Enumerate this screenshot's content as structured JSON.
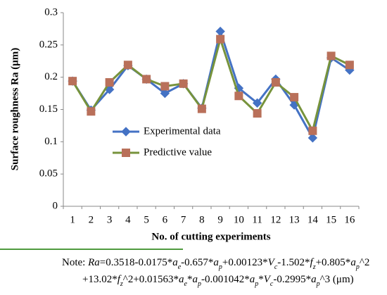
{
  "chart_data": {
    "type": "line",
    "y_label": "Surface roughness Ra (μm)",
    "x_label": "No. of cutting experiments",
    "categories": [
      "1",
      "2",
      "3",
      "4",
      "5",
      "6",
      "7",
      "8",
      "9",
      "10",
      "11",
      "12",
      "13",
      "14",
      "15",
      "16"
    ],
    "series": [
      {
        "name": "Experimental data",
        "color": "#4472c4",
        "marker_color": "#4472c4",
        "marker": "diamond",
        "values": [
          0.194,
          0.149,
          0.181,
          0.218,
          0.197,
          0.175,
          0.19,
          0.152,
          0.271,
          0.183,
          0.16,
          0.197,
          0.157,
          0.106,
          0.23,
          0.211
        ]
      },
      {
        "name": "Predictive value",
        "color": "#77933c",
        "marker_color": "#b9705a",
        "marker": "square",
        "values": [
          0.194,
          0.147,
          0.192,
          0.219,
          0.197,
          0.186,
          0.19,
          0.151,
          0.259,
          0.171,
          0.144,
          0.192,
          0.169,
          0.117,
          0.233,
          0.219
        ]
      }
    ],
    "ylim": [
      0,
      0.3
    ],
    "yticks": [
      0,
      0.05,
      0.1,
      0.15,
      0.2,
      0.25,
      0.3
    ],
    "grid": false,
    "legend": "left"
  },
  "note": {
    "lines": [
      [
        {
          "text": "Note: ",
          "fmt": "n"
        },
        {
          "text": "Ra",
          "fmt": "i"
        },
        {
          "text": "=0.3518-0.0175*",
          "fmt": "n"
        },
        {
          "text": "a",
          "fmt": "i"
        },
        {
          "text": "e",
          "fmt": "sub"
        },
        {
          "text": "-0.657*",
          "fmt": "n"
        },
        {
          "text": "a",
          "fmt": "i"
        },
        {
          "text": "p",
          "fmt": "sub"
        },
        {
          "text": "+0.00123*",
          "fmt": "n"
        },
        {
          "text": "V",
          "fmt": "i"
        },
        {
          "text": "c",
          "fmt": "sub"
        },
        {
          "text": "-1.502*",
          "fmt": "n"
        },
        {
          "text": "f",
          "fmt": "i"
        },
        {
          "text": "z",
          "fmt": "sub"
        },
        {
          "text": "+0.805*",
          "fmt": "n"
        },
        {
          "text": "a",
          "fmt": "i"
        },
        {
          "text": "p",
          "fmt": "sub"
        },
        {
          "text": "^2",
          "fmt": "n"
        }
      ],
      [
        {
          "text": "+13.02*",
          "fmt": "n"
        },
        {
          "text": "f",
          "fmt": "i"
        },
        {
          "text": "z",
          "fmt": "sub"
        },
        {
          "text": "^2+0.01563*",
          "fmt": "n"
        },
        {
          "text": "a",
          "fmt": "i"
        },
        {
          "text": "e",
          "fmt": "sub"
        },
        {
          "text": "*",
          "fmt": "n"
        },
        {
          "text": "a",
          "fmt": "i"
        },
        {
          "text": "p",
          "fmt": "sub"
        },
        {
          "text": "-0.001042*",
          "fmt": "n"
        },
        {
          "text": "a",
          "fmt": "i"
        },
        {
          "text": "p",
          "fmt": "sub"
        },
        {
          "text": "*",
          "fmt": "n"
        },
        {
          "text": "V",
          "fmt": "i"
        },
        {
          "text": "c",
          "fmt": "sub"
        },
        {
          "text": "-0.2995*",
          "fmt": "n"
        },
        {
          "text": "a",
          "fmt": "i"
        },
        {
          "text": "p",
          "fmt": "sub"
        },
        {
          "text": "^3 (μm)",
          "fmt": "n"
        }
      ]
    ]
  }
}
